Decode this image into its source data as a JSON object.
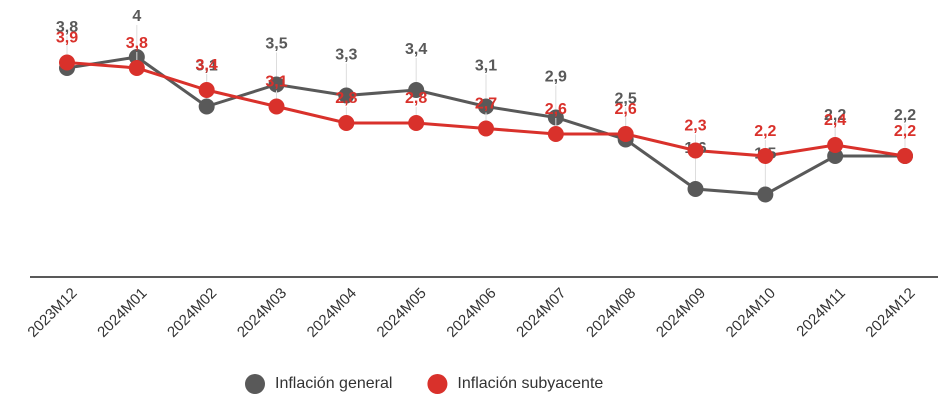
{
  "chart_data": {
    "type": "line",
    "categories": [
      "2023M12",
      "2024M01",
      "2024M02",
      "2024M03",
      "2024M04",
      "2024M05",
      "2024M06",
      "2024M07",
      "2024M08",
      "2024M09",
      "2024M10",
      "2024M11",
      "2024M12"
    ],
    "series": [
      {
        "name": "Inflación general",
        "color": "#595959",
        "values": [
          3.8,
          4,
          3.1,
          3.5,
          3.3,
          3.4,
          3.1,
          2.9,
          2.5,
          1.6,
          1.5,
          2.2,
          2.2
        ],
        "value_labels": [
          "3,8",
          "4",
          "3,1",
          "3,5",
          "3,3",
          "3,4",
          "3,1",
          "2,9",
          "2,5",
          "1,6",
          "1,5",
          "2,2",
          "2,2"
        ]
      },
      {
        "name": "Inflación subyacente",
        "color": "#d9312b",
        "values": [
          3.9,
          3.8,
          3.4,
          3.1,
          2.8,
          2.8,
          2.7,
          2.6,
          2.6,
          2.3,
          2.2,
          2.4,
          2.2
        ],
        "value_labels": [
          "3,9",
          "3,8",
          "3,4",
          "3,1",
          "2,8",
          "2,8",
          "2,7",
          "2,6",
          "2,6",
          "2,3",
          "2,2",
          "2,4",
          "2,2"
        ]
      }
    ],
    "ylim": [
      0,
      5
    ],
    "grid": false,
    "legend": "bottom"
  }
}
